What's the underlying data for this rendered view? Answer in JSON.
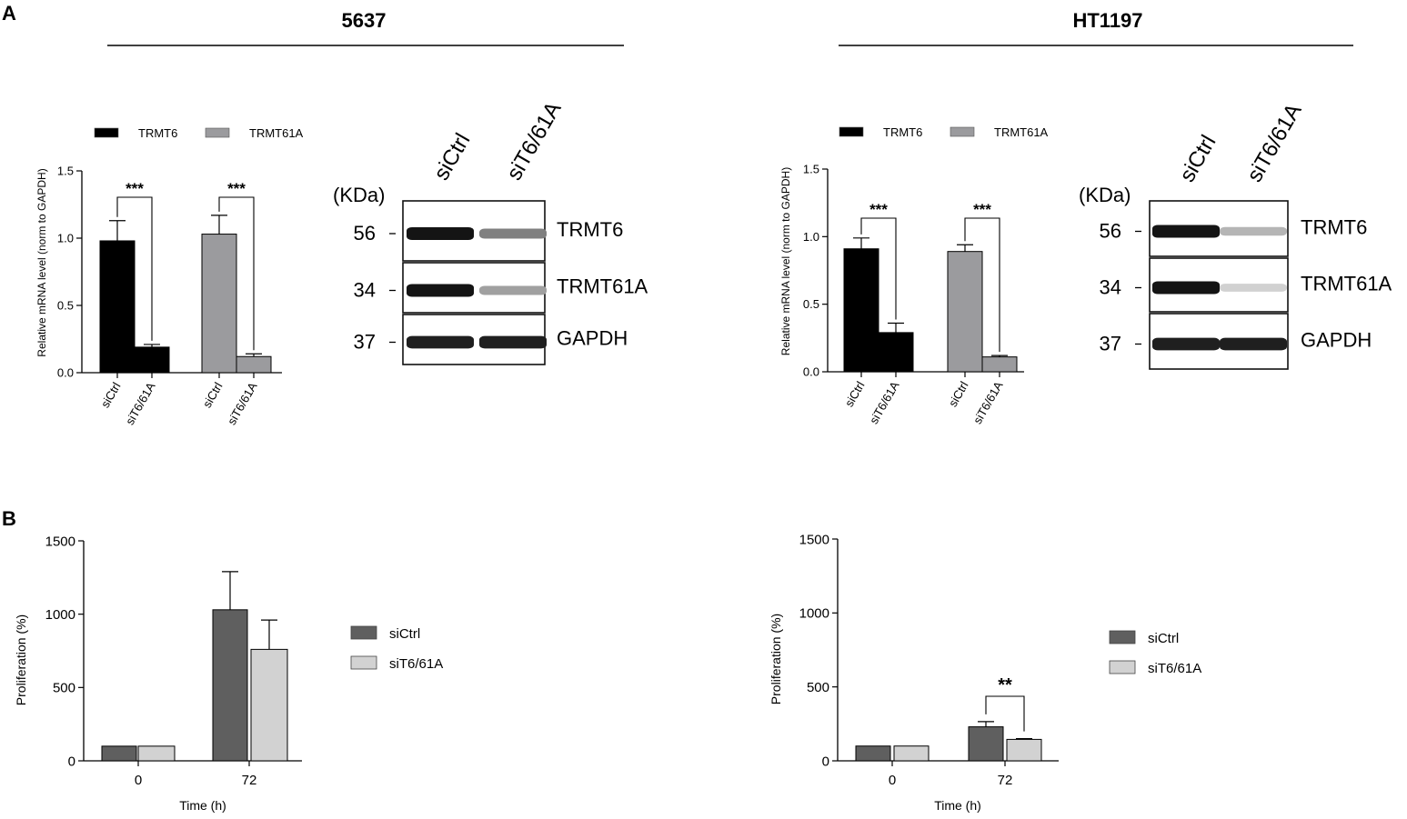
{
  "panels": {
    "a": {
      "label": "A"
    },
    "b": {
      "label": "B"
    }
  },
  "cell_lines": [
    "5637",
    "HT1197"
  ],
  "colors": {
    "trmt6": "#000000",
    "trmt61a": "#9b9b9e",
    "sictrl": "#5f5f5f",
    "sit6": "#d2d2d2",
    "axis": "#000000"
  },
  "sig": {
    "three": "***",
    "two": "**"
  },
  "chart_data": [
    {
      "id": "mrna-5637",
      "type": "bar",
      "cell_line": "5637",
      "ylabel": "Relative mRNA level (norm to GAPDH)",
      "xlabel": "",
      "ylim": [
        0,
        1.5
      ],
      "yticks": [
        "0.0",
        "0.5",
        "1.0",
        "1.5"
      ],
      "ytick_values": [
        0,
        0.5,
        1.0,
        1.5
      ],
      "legend_position": "top",
      "series": [
        {
          "name": "TRMT6",
          "color": "#000000",
          "categories": [
            "siCtrl",
            "siT6/61A"
          ],
          "values": [
            0.98,
            0.19
          ],
          "errors": [
            0.15,
            0.02
          ]
        },
        {
          "name": "TRMT61A",
          "color": "#9b9b9e",
          "categories": [
            "siCtrl",
            "siT6/61A"
          ],
          "values": [
            1.03,
            0.12
          ],
          "errors": [
            0.14,
            0.02
          ]
        }
      ],
      "annotations": [
        "***",
        "***"
      ]
    },
    {
      "id": "mrna-ht1197",
      "type": "bar",
      "cell_line": "HT1197",
      "ylabel": "Relative mRNA level (norm to GAPDH)",
      "xlabel": "",
      "ylim": [
        0,
        1.5
      ],
      "yticks": [
        "0.0",
        "0.5",
        "1.0",
        "1.5"
      ],
      "ytick_values": [
        0,
        0.5,
        1.0,
        1.5
      ],
      "legend_position": "top",
      "series": [
        {
          "name": "TRMT6",
          "color": "#000000",
          "categories": [
            "siCtrl",
            "siT6/61A"
          ],
          "values": [
            0.91,
            0.29
          ],
          "errors": [
            0.08,
            0.07
          ]
        },
        {
          "name": "TRMT61A",
          "color": "#9b9b9e",
          "categories": [
            "siCtrl",
            "siT6/61A"
          ],
          "values": [
            0.89,
            0.11
          ],
          "errors": [
            0.05,
            0.01
          ]
        }
      ],
      "annotations": [
        "***",
        "***"
      ]
    },
    {
      "id": "prolif-5637",
      "type": "bar",
      "cell_line": "5637",
      "xlabel": "Time (h)",
      "ylabel": "Proliferation (%)",
      "ylim": [
        0,
        1500
      ],
      "yticks": [
        "0",
        "500",
        "1000",
        "1500"
      ],
      "ytick_values": [
        0,
        500,
        1000,
        1500
      ],
      "categories": [
        "0",
        "72"
      ],
      "legend_position": "right",
      "series": [
        {
          "name": "siCtrl",
          "color": "#5f5f5f",
          "values": [
            100,
            1030
          ],
          "errors": [
            0,
            260
          ]
        },
        {
          "name": "siT6/61A",
          "color": "#d2d2d2",
          "values": [
            100,
            760
          ],
          "errors": [
            0,
            200
          ]
        }
      ],
      "annotations": []
    },
    {
      "id": "prolif-ht1197",
      "type": "bar",
      "cell_line": "HT1197",
      "xlabel": "Time (h)",
      "ylabel": "Proliferation (%)",
      "ylim": [
        0,
        1500
      ],
      "yticks": [
        "0",
        "500",
        "1000",
        "1500"
      ],
      "ytick_values": [
        0,
        500,
        1000,
        1500
      ],
      "categories": [
        "0",
        "72"
      ],
      "legend_position": "right",
      "series": [
        {
          "name": "siCtrl",
          "color": "#5f5f5f",
          "values": [
            100,
            230
          ],
          "errors": [
            0,
            35
          ]
        },
        {
          "name": "siT6/61A",
          "color": "#d2d2d2",
          "values": [
            100,
            145
          ],
          "errors": [
            0,
            5
          ]
        }
      ],
      "annotations": [
        "**"
      ]
    }
  ],
  "western_blots": [
    {
      "id": "wb-5637",
      "cell_line": "5637",
      "unit_label": "(KDa)",
      "lanes": [
        "siCtrl",
        "siT6/61A"
      ],
      "bands": [
        {
          "marker": "56",
          "protein": "TRMT6",
          "intensity": [
            1.0,
            0.5
          ]
        },
        {
          "marker": "34",
          "protein": "TRMT61A",
          "intensity": [
            1.0,
            0.35
          ]
        },
        {
          "marker": "37",
          "protein": "GAPDH",
          "intensity": [
            0.95,
            0.95
          ]
        }
      ]
    },
    {
      "id": "wb-ht1197",
      "cell_line": "HT1197",
      "unit_label": "(KDa)",
      "lanes": [
        "siCtrl",
        "siT6/61A"
      ],
      "bands": [
        {
          "marker": "56",
          "protein": "TRMT6",
          "intensity": [
            1.0,
            0.25
          ]
        },
        {
          "marker": "34",
          "protein": "TRMT61A",
          "intensity": [
            1.0,
            0.12
          ]
        },
        {
          "marker": "37",
          "protein": "GAPDH",
          "intensity": [
            0.95,
            0.95
          ]
        }
      ]
    }
  ]
}
